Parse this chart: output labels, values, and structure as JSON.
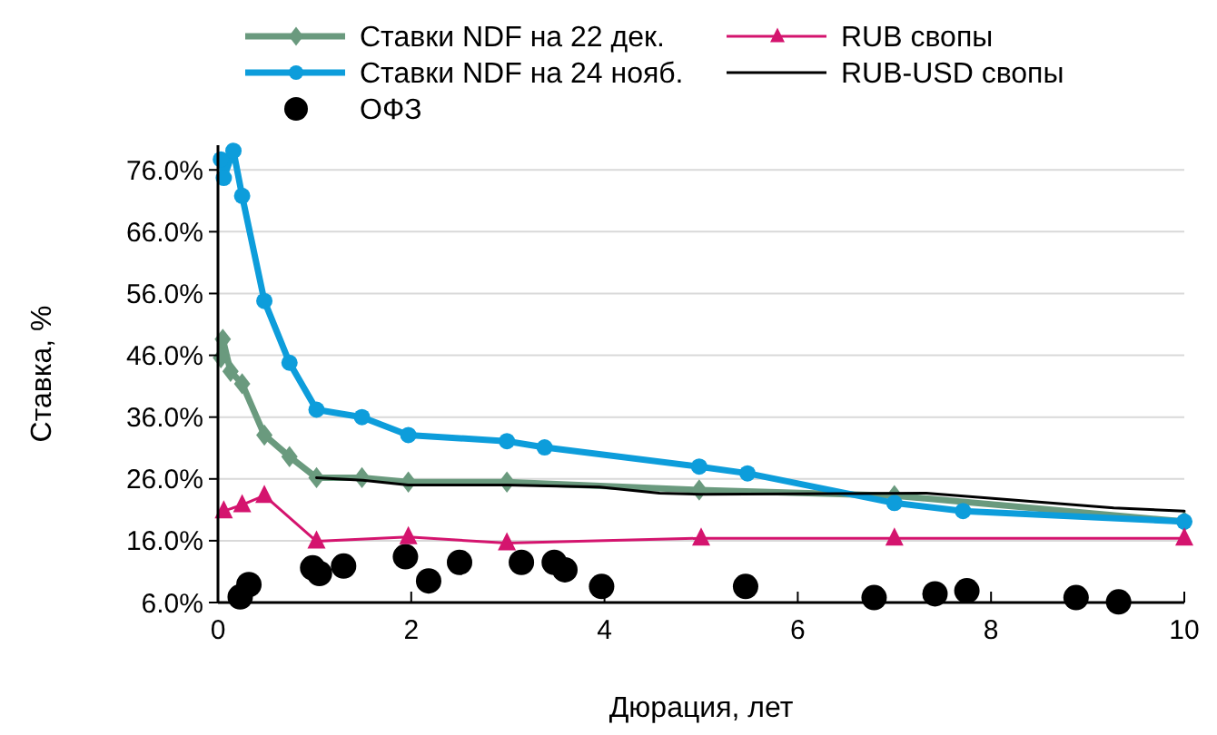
{
  "chart_data": {
    "type": "line",
    "xlabel": "Дюрация, лет",
    "ylabel": "Ставка, %",
    "xlim": [
      0,
      10
    ],
    "xticks": [
      0,
      2,
      4,
      6,
      8,
      10
    ],
    "ylim": [
      6,
      80
    ],
    "yticks": [
      {
        "value": 6,
        "label": "6.0%"
      },
      {
        "value": 16,
        "label": "16.0%"
      },
      {
        "value": 26,
        "label": "26.0%"
      },
      {
        "value": 36,
        "label": "36.0%"
      },
      {
        "value": 46,
        "label": "46.0%"
      },
      {
        "value": 56,
        "label": "56.0%"
      },
      {
        "value": 66,
        "label": "66.0%"
      },
      {
        "value": 76,
        "label": "76.0%"
      }
    ],
    "grid": "y",
    "legend": "top",
    "series": [
      {
        "name": "Ставки NDF на 22 дек.",
        "color": "#6a9a7e",
        "marker": "diamond",
        "x": [
          0.03,
          0.05,
          0.13,
          0.25,
          0.48,
          0.74,
          1.02,
          1.49,
          1.97,
          2.99,
          4.98,
          7.0,
          10
        ],
        "values": [
          45.6,
          48.6,
          43.4,
          41.4,
          33.1,
          29.6,
          26.2,
          26.2,
          25.5,
          25.5,
          24.2,
          23.3,
          19.1
        ]
      },
      {
        "name": "Ставки NDF на 24 нояб.",
        "color": "#0d9ddb",
        "marker": "circle",
        "x": [
          0.03,
          0.06,
          0.16,
          0.25,
          0.48,
          0.74,
          1.02,
          1.49,
          1.97,
          2.99,
          3.38,
          4.98,
          5.48,
          7.0,
          7.71,
          10
        ],
        "values": [
          77.7,
          74.7,
          79.1,
          71.8,
          54.8,
          44.8,
          37.2,
          36,
          33.1,
          32.1,
          31.1,
          28.0,
          26.9,
          22.1,
          20.8,
          19.1
        ]
      },
      {
        "name": "ОФЗ",
        "type": "scatter",
        "color": "#000000",
        "marker": "circle",
        "x": [
          0.23,
          0.32,
          0.98,
          1.05,
          1.3,
          1.94,
          2.18,
          2.5,
          3.14,
          3.48,
          3.59,
          3.97,
          5.46,
          6.79,
          7.42,
          7.75,
          8.88,
          9.32
        ],
        "values": [
          6.9,
          8.9,
          11.6,
          10.7,
          11.9,
          13.4,
          9.5,
          12.5,
          12.5,
          12.5,
          11.3,
          8.6,
          8.6,
          6.8,
          7.4,
          7.9,
          6.8,
          6.1
        ]
      },
      {
        "name": "RUB свопы",
        "color": "#d4146e",
        "marker": "triangle",
        "x": [
          0.06,
          0.25,
          0.48,
          1.02,
          1.97,
          2.99,
          5,
          7,
          10
        ],
        "values": [
          20.8,
          21.8,
          23.3,
          15.9,
          16.6,
          15.6,
          16.4,
          16.4,
          16.4
        ]
      },
      {
        "name": "RUB-USD свопы",
        "color": "#000000",
        "marker": "none",
        "x": [
          1.02,
          1.5,
          1.97,
          2.99,
          3.95,
          4.57,
          5,
          7.33,
          9.27,
          10
        ],
        "values": [
          26.2,
          25.8,
          25.0,
          25.0,
          24.7,
          23.7,
          23.5,
          23.7,
          21.3,
          20.8
        ]
      }
    ]
  }
}
